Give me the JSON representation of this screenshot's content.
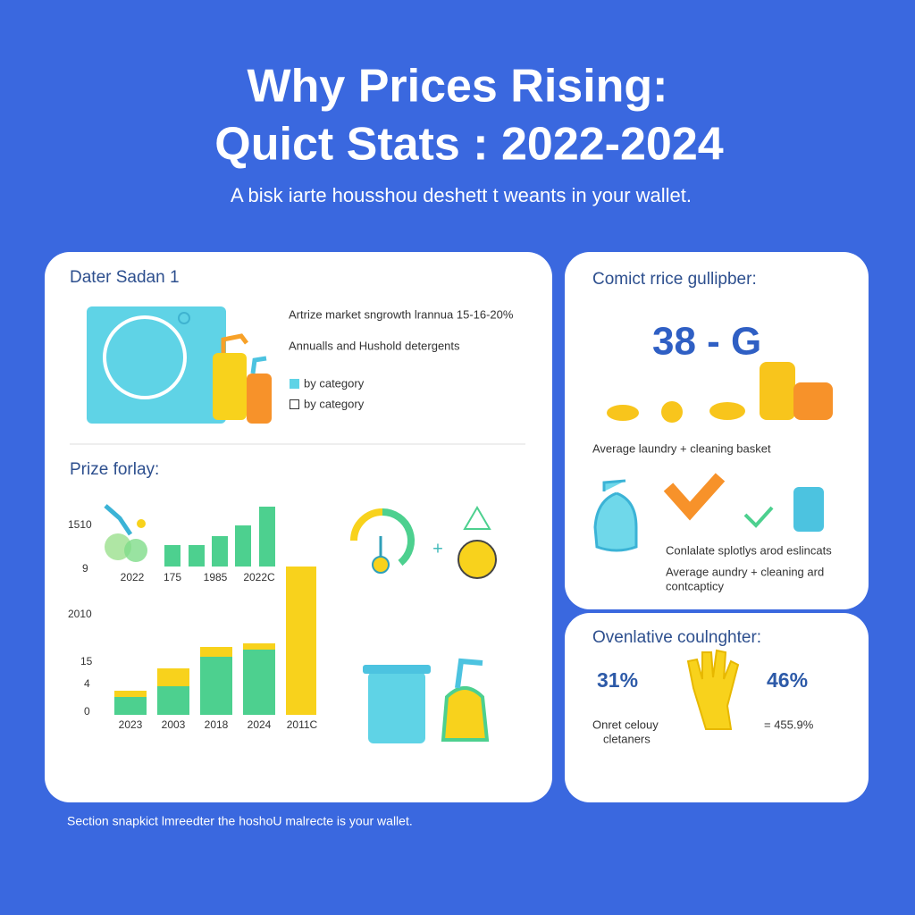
{
  "header": {
    "title_lines": [
      "Why Prices Rising:",
      "Quict Stats : 2022-2024"
    ],
    "subtitle": "A bisk iarte housshou deshett t weants in your wallet."
  },
  "left_card": {
    "heading": "Dater Sadan 1",
    "notes": [
      "Artrize market sngrowth lrannua 15-16-20%",
      "Annualls and Hushold detergents"
    ],
    "legend": [
      "by category",
      "by category"
    ],
    "section_title": "Prize forlay:",
    "upper_axis_labels": [
      "1510",
      "9"
    ],
    "upper_categories": [
      "2022",
      "175",
      "1985",
      "2022C"
    ],
    "lower_axis_labels": [
      "2010",
      "15",
      "4",
      "0"
    ],
    "lower_categories": [
      "2023",
      "2003",
      "2018",
      "2024",
      "2011C"
    ]
  },
  "right_top_card": {
    "heading": "Comict rrice gullipber:",
    "big_stat": "38 - G",
    "caption": "Average laundry + cleaning basket",
    "notes": [
      "Conlalate splotlys arod eslincats",
      "Average aundry + cleaning ard",
      "contcapticy"
    ]
  },
  "right_bottom_card": {
    "heading": "Ovenlative coulnghter:",
    "stats": [
      "31%",
      "46%"
    ],
    "caption_lines": [
      "Onret celouy",
      "cletaners"
    ],
    "side_stat": "= 455.9%"
  },
  "footer": "Section snapkict lmreedter the hoshoU malrecte is your wallet."
}
